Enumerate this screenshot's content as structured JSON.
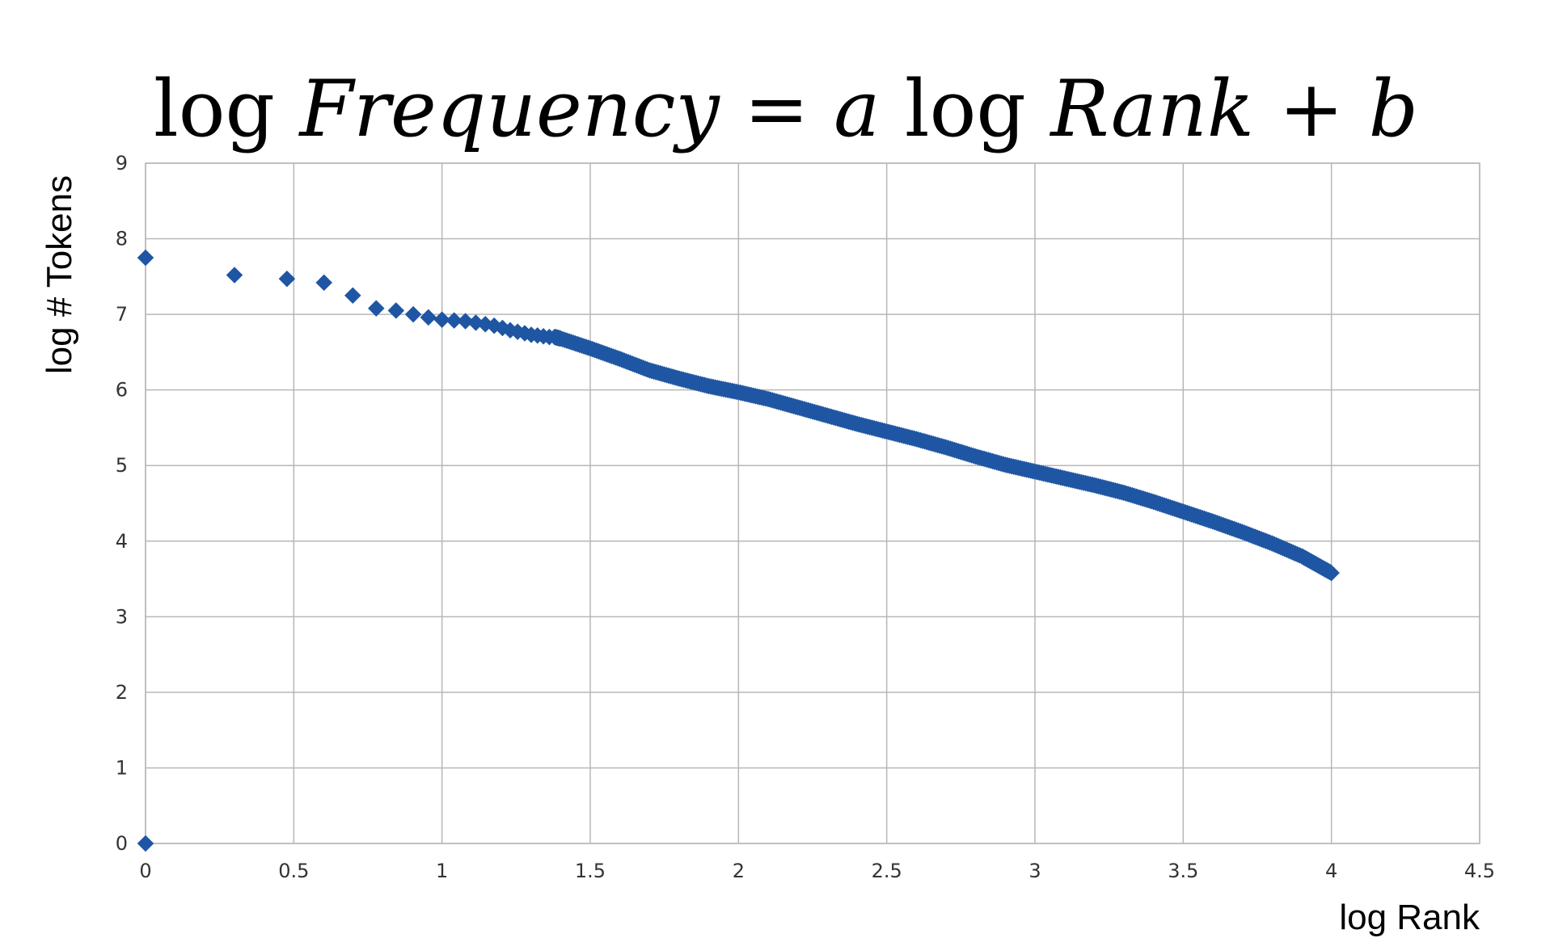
{
  "chart_data": {
    "type": "scatter",
    "title": {
      "parts": [
        {
          "text": "log ",
          "italic": false
        },
        {
          "text": "Frequency",
          "italic": true
        },
        {
          "text": " = ",
          "italic": false
        },
        {
          "text": "a",
          "italic": true
        },
        {
          "text": " log ",
          "italic": false
        },
        {
          "text": "Rank",
          "italic": true
        },
        {
          "text": " + ",
          "italic": false
        },
        {
          "text": "b",
          "italic": true
        }
      ]
    },
    "xlabel": "log Rank",
    "ylabel": "log # Tokens",
    "xlim": [
      0,
      4.5
    ],
    "ylim": [
      0,
      9
    ],
    "x_ticks": [
      0,
      0.5,
      1,
      1.5,
      2,
      2.5,
      3,
      3.5,
      4,
      4.5
    ],
    "x_tick_labels": [
      "0",
      "0.5",
      "1",
      "1.5",
      "2",
      "2.5",
      "3",
      "3.5",
      "4",
      "4.5"
    ],
    "y_ticks": [
      0,
      1,
      2,
      3,
      4,
      5,
      6,
      7,
      8,
      9
    ],
    "y_tick_labels": [
      "0",
      "1",
      "2",
      "3",
      "4",
      "5",
      "6",
      "7",
      "8",
      "9"
    ],
    "grid": true,
    "legend": "none",
    "marker": "diamond",
    "color": "#1f56a3",
    "series": [
      {
        "x": [
          0,
          0,
          0.3,
          0.477,
          0.602,
          0.699,
          0.778,
          0.845,
          0.903,
          0.954,
          1.0,
          1.041,
          1.079,
          1.114,
          1.146,
          1.176,
          1.204,
          1.23,
          1.255,
          1.279,
          1.301,
          1.322,
          1.342,
          1.362,
          1.38,
          1.4,
          1.5,
          1.6,
          1.7,
          1.8,
          1.9,
          2.0,
          2.1,
          2.2,
          2.3,
          2.4,
          2.5,
          2.6,
          2.7,
          2.8,
          2.9,
          3.0,
          3.1,
          3.2,
          3.3,
          3.4,
          3.5,
          3.6,
          3.7,
          3.8,
          3.9,
          3.95,
          4.0
        ],
        "y": [
          0,
          7.75,
          7.52,
          7.47,
          7.42,
          7.25,
          7.08,
          7.05,
          7.0,
          6.96,
          6.93,
          6.92,
          6.91,
          6.89,
          6.87,
          6.85,
          6.82,
          6.79,
          6.77,
          6.75,
          6.73,
          6.72,
          6.71,
          6.7,
          6.7,
          6.68,
          6.55,
          6.41,
          6.26,
          6.15,
          6.05,
          5.97,
          5.88,
          5.77,
          5.66,
          5.55,
          5.45,
          5.35,
          5.24,
          5.12,
          5.01,
          4.92,
          4.83,
          4.74,
          4.64,
          4.52,
          4.39,
          4.26,
          4.12,
          3.97,
          3.8,
          3.69,
          3.58
        ]
      }
    ]
  }
}
